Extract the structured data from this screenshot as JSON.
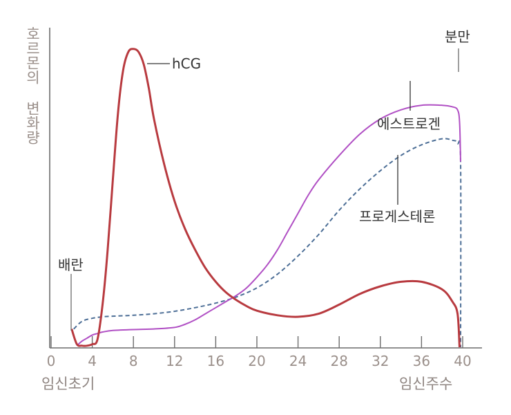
{
  "chart_data": {
    "type": "line",
    "ylabel": "호르몬의 변화량",
    "x_ticks": [
      "0",
      "4",
      "8",
      "12",
      "16",
      "20",
      "24",
      "28",
      "32",
      "36",
      "40"
    ],
    "x_tick_values": [
      0,
      4,
      8,
      12,
      16,
      20,
      24,
      28,
      32,
      36,
      40
    ],
    "xlim": [
      0,
      42
    ],
    "ylim": [
      0,
      100
    ],
    "x_caption_left": "임신초기",
    "x_caption_right": "임신주수",
    "series": [
      {
        "name": "hCG",
        "color": "#b83a3f",
        "style": "solid",
        "x": [
          2,
          2.5,
          3,
          3.5,
          4,
          4.5,
          5,
          5.5,
          6,
          6.5,
          7,
          7.5,
          8,
          8.5,
          9,
          9.5,
          10,
          11,
          12,
          13,
          14,
          15,
          16,
          17,
          18,
          19,
          20,
          22,
          24,
          26,
          28,
          30,
          32,
          34,
          36,
          38,
          39,
          39.5,
          39.7
        ],
        "y": [
          6,
          1,
          0.5,
          0.5,
          1,
          2.5,
          14,
          32,
          55,
          77,
          91,
          97,
          98,
          97,
          93,
          85,
          75,
          60,
          48,
          39,
          32,
          26,
          21.5,
          18,
          15.5,
          13.5,
          12,
          10.5,
          10,
          11,
          14,
          17.5,
          20,
          21.5,
          21.5,
          19,
          15,
          11,
          0
        ]
      },
      {
        "name": "에스트로겐",
        "color": "#b04fc4",
        "style": "solid",
        "x": [
          2.5,
          3,
          3.5,
          4,
          4.5,
          5,
          6,
          8,
          10,
          12,
          13,
          14,
          15,
          16,
          17,
          18,
          19,
          20,
          21,
          22,
          23,
          24,
          25,
          26,
          28,
          30,
          32,
          34,
          36,
          38,
          39,
          39.5,
          39.7,
          39.8
        ],
        "y": [
          0.5,
          2,
          3,
          4,
          4.5,
          5,
          5.5,
          5.8,
          6,
          6.5,
          7.5,
          9,
          11,
          13,
          15,
          17,
          19.5,
          23,
          27,
          32,
          38,
          44,
          50,
          55,
          63,
          70,
          75,
          78,
          79.5,
          79.5,
          79,
          78,
          74,
          61
        ]
      },
      {
        "name": "프로게스테론",
        "color": "#4c6e96",
        "style": "dashed",
        "x": [
          2.2,
          3,
          4,
          5,
          6,
          8,
          10,
          12,
          14,
          16,
          18,
          20,
          22,
          24,
          26,
          28,
          30,
          32,
          34,
          36,
          38,
          39,
          39.5,
          39.8,
          39.8
        ],
        "y": [
          6,
          8.5,
          9.5,
          10,
          10.2,
          10.5,
          11,
          11.8,
          13,
          14.5,
          16.5,
          19.5,
          24,
          30,
          37,
          45,
          52,
          58,
          63,
          66.5,
          68.5,
          68,
          67,
          61,
          0
        ]
      }
    ],
    "annotations": {
      "hcg": "hCG",
      "estrogen": "에스트로겐",
      "progesterone": "프로게스테론",
      "ovulation": "배란",
      "delivery": "분만"
    },
    "colors": {
      "axis": "#6b6b6b",
      "tick_text": "#9a8f8a",
      "label_text": "#333333"
    }
  }
}
